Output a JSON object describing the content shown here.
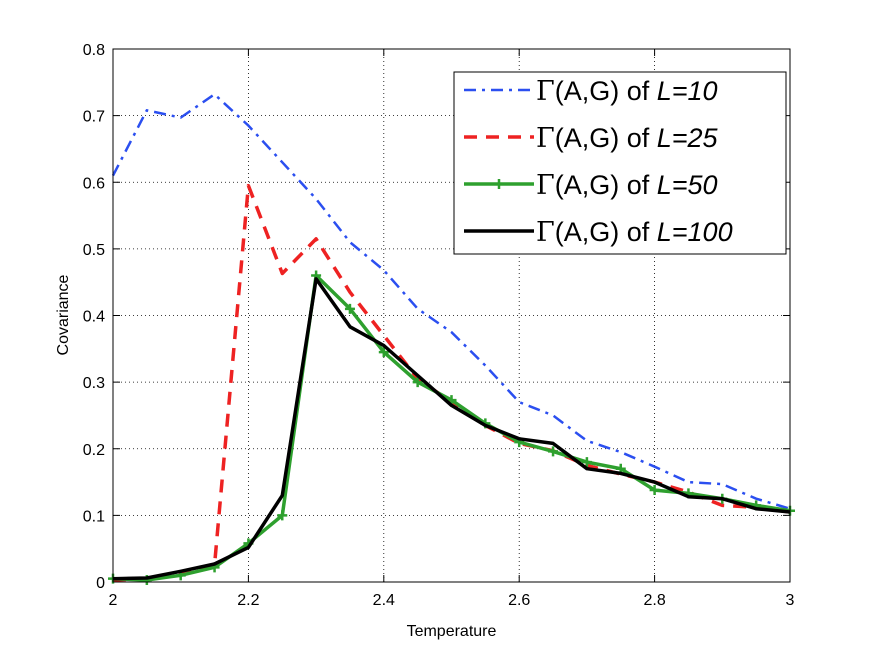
{
  "chart_data": {
    "type": "line",
    "title": "",
    "xlabel": "Temperature",
    "ylabel": "Covariance",
    "xlim": [
      2,
      3
    ],
    "ylim": [
      0,
      0.8
    ],
    "xticks": [
      "2",
      "2.2",
      "2.4",
      "2.6",
      "2.8",
      "3"
    ],
    "yticks": [
      "0",
      "0.1",
      "0.2",
      "0.3",
      "0.4",
      "0.5",
      "0.6",
      "0.7",
      "0.8"
    ],
    "grid": true,
    "legend_position": "top-right",
    "x": [
      2.0,
      2.05,
      2.1,
      2.15,
      2.2,
      2.25,
      2.3,
      2.35,
      2.4,
      2.45,
      2.5,
      2.55,
      2.6,
      2.65,
      2.7,
      2.75,
      2.8,
      2.85,
      2.9,
      2.95,
      3.0
    ],
    "series": [
      {
        "name": "Γ(A,G) of L=10",
        "legend": {
          "prefix": "Γ",
          "middle": "(A,G) of ",
          "italic": "L=10"
        },
        "color": "#2b4ff0",
        "style": "dash-dot",
        "values": [
          0.61,
          0.708,
          0.697,
          0.732,
          0.685,
          0.63,
          0.575,
          0.51,
          0.468,
          0.41,
          0.375,
          0.325,
          0.27,
          0.25,
          0.212,
          0.195,
          0.173,
          0.15,
          0.147,
          0.125,
          0.11
        ]
      },
      {
        "name": "Γ(A,G) of L=25",
        "legend": {
          "prefix": "Γ",
          "middle": "(A,G) of ",
          "italic": "L=25"
        },
        "color": "#ee2222",
        "style": "dashed",
        "values": [
          0.003,
          0.005,
          0.015,
          0.025,
          0.595,
          0.463,
          0.515,
          0.435,
          0.37,
          0.305,
          0.27,
          0.235,
          0.208,
          0.197,
          0.175,
          0.162,
          0.15,
          0.135,
          0.115,
          0.112,
          0.105
        ]
      },
      {
        "name": "Γ(A,G) of L=50",
        "legend": {
          "prefix": "Γ",
          "middle": "(A,G) of ",
          "italic": "L=50"
        },
        "color": "#2ea02e",
        "style": "solid-plus",
        "values": [
          0.005,
          0.003,
          0.01,
          0.022,
          0.058,
          0.1,
          0.46,
          0.41,
          0.345,
          0.3,
          0.273,
          0.238,
          0.21,
          0.196,
          0.18,
          0.17,
          0.138,
          0.133,
          0.125,
          0.115,
          0.107
        ]
      },
      {
        "name": "Γ(A,G) of L=100",
        "legend": {
          "prefix": "Γ",
          "middle": "(A,G) of ",
          "italic": "L=100"
        },
        "color": "#000000",
        "style": "solid",
        "values": [
          0.005,
          0.006,
          0.016,
          0.027,
          0.052,
          0.13,
          0.455,
          0.383,
          0.355,
          0.31,
          0.265,
          0.235,
          0.215,
          0.208,
          0.17,
          0.163,
          0.15,
          0.128,
          0.125,
          0.11,
          0.105
        ]
      }
    ]
  }
}
